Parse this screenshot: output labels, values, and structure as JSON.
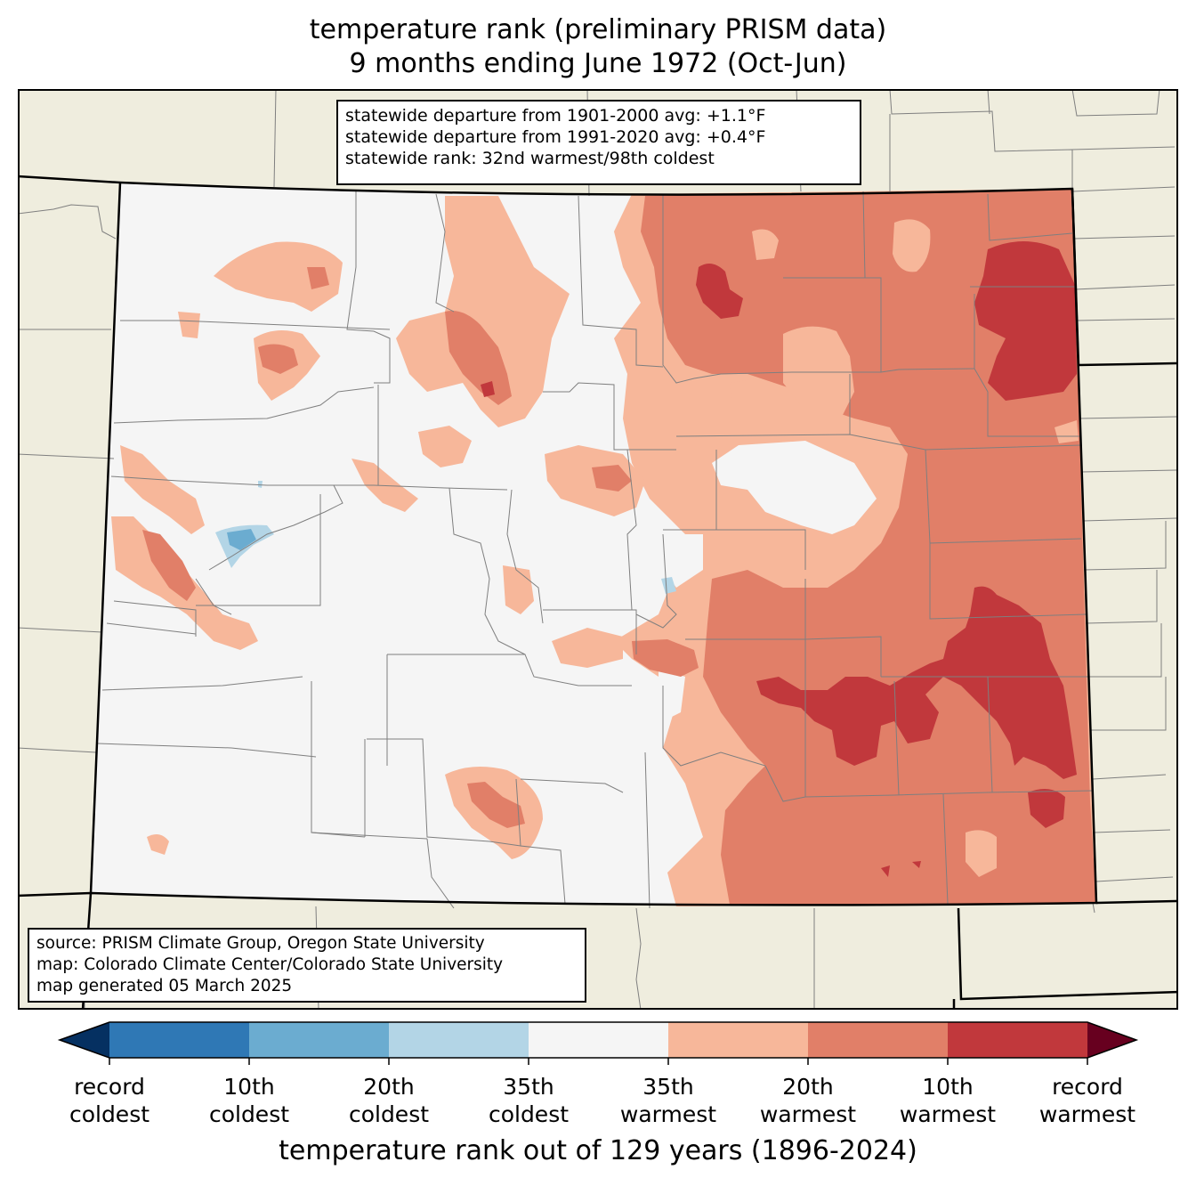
{
  "title": {
    "line1": "temperature rank (preliminary PRISM data)",
    "line2": "9 months ending June 1972 (Oct-Jun)"
  },
  "stats": {
    "line1": "statewide departure from 1901-2000 avg: +1.1°F",
    "line2": "statewide departure from 1991-2020 avg: +0.4°F",
    "line3": "statewide rank: 32nd warmest/98th coldest"
  },
  "source": {
    "line1": "source: PRISM Climate Group, Oregon State University",
    "line2": "map: Colorado Climate Center/Colorado State University",
    "line3": "map generated 05 March 2025"
  },
  "colorbar": {
    "title": "temperature rank out of 129 years (1896-2024)",
    "under_color": "#053061",
    "over_color": "#67001f",
    "bins": [
      {
        "color": "#2f78b5"
      },
      {
        "color": "#6bacd0"
      },
      {
        "color": "#b3d5e6"
      },
      {
        "color": "#f5f5f5"
      },
      {
        "color": "#f7b79a"
      },
      {
        "color": "#e17f68"
      },
      {
        "color": "#c1383c"
      }
    ],
    "ticks": [
      {
        "top": "record",
        "bottom": "coldest"
      },
      {
        "top": "10th",
        "bottom": "coldest"
      },
      {
        "top": "20th",
        "bottom": "coldest"
      },
      {
        "top": "35th",
        "bottom": "coldest"
      },
      {
        "top": "35th",
        "bottom": "warmest"
      },
      {
        "top": "20th",
        "bottom": "warmest"
      },
      {
        "top": "10th",
        "bottom": "warmest"
      },
      {
        "top": "record",
        "bottom": "warmest"
      }
    ]
  },
  "map_colors": {
    "background": "#efedde",
    "state_fill": "#f5f5f5",
    "rank_35_warm": "#f7b79a",
    "rank_20_warm": "#e17f68",
    "rank_10_warm": "#c1383c",
    "rank_20_cold": "#b3d5e6",
    "rank_10_cold": "#6bacd0",
    "rank_record_cold": "#2f78b5",
    "county_lines": "#7f7f7f"
  }
}
